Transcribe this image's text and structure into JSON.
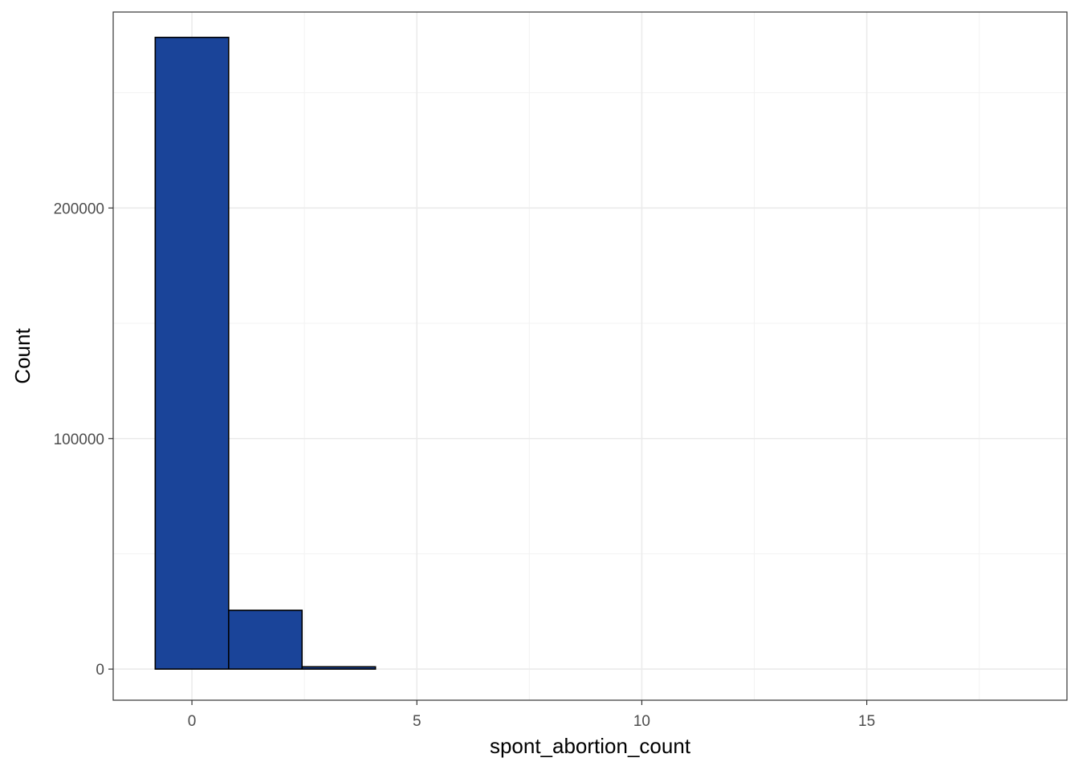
{
  "chart_data": {
    "type": "bar",
    "subtype": "histogram",
    "title": "",
    "xlabel": "spont_abortion_count",
    "ylabel": "Count",
    "xlim": [
      -1.75,
      19.45
    ],
    "ylim": [
      -13500,
      285000
    ],
    "x_ticks": [
      0,
      5,
      10,
      15
    ],
    "x_tick_labels": [
      "0",
      "5",
      "10",
      "15"
    ],
    "x_minor_ticks": [
      2.5,
      7.5,
      12.5,
      17.5
    ],
    "y_ticks": [
      0,
      100000,
      200000
    ],
    "y_tick_labels": [
      "0",
      "100000",
      "200000"
    ],
    "y_minor_ticks": [
      50000,
      150000,
      250000
    ],
    "grid": true,
    "legend": "none",
    "bin_width": 1.632,
    "bins": [
      {
        "xmin": -0.816,
        "xmax": 0.816,
        "count": 274000
      },
      {
        "xmin": 0.816,
        "xmax": 2.448,
        "count": 25500
      },
      {
        "xmin": 2.448,
        "xmax": 4.08,
        "count": 1000
      },
      {
        "xmin": 4.08,
        "xmax": 5.712,
        "count": 0
      },
      {
        "xmin": 5.712,
        "xmax": 7.344,
        "count": 0
      },
      {
        "xmin": 7.344,
        "xmax": 8.976,
        "count": 0
      },
      {
        "xmin": 8.976,
        "xmax": 10.608,
        "count": 0
      },
      {
        "xmin": 10.608,
        "xmax": 12.24,
        "count": 0
      },
      {
        "xmin": 12.24,
        "xmax": 13.872,
        "count": 0
      },
      {
        "xmin": 13.872,
        "xmax": 15.504,
        "count": 0
      },
      {
        "xmin": 15.504,
        "xmax": 17.136,
        "count": 0
      },
      {
        "xmin": 17.136,
        "xmax": 18.768,
        "count": 0
      }
    ],
    "colors": {
      "bar_fill": "#1a4499",
      "bar_stroke": "#000000",
      "grid_major": "#ebebeb",
      "grid_minor": "#f3f3f3",
      "panel_border": "#333333"
    }
  }
}
